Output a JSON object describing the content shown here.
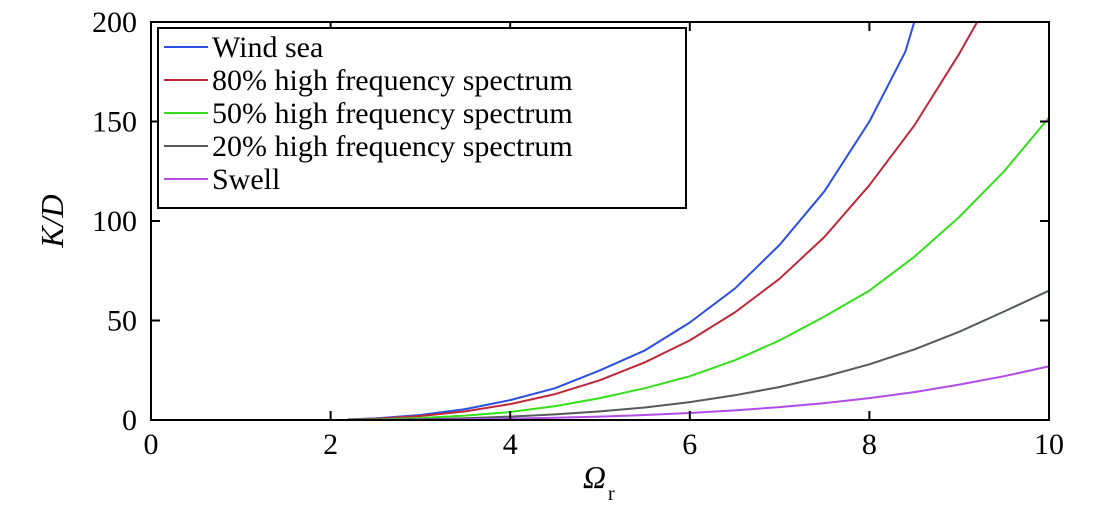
{
  "chart_data": {
    "type": "line",
    "title": "",
    "xlabel": "Ω",
    "xlabel_subscript": "r",
    "ylabel": "K/D",
    "xlim": [
      0,
      10
    ],
    "ylim": [
      0,
      200
    ],
    "xticks": [
      0,
      2,
      4,
      6,
      8,
      10
    ],
    "yticks": [
      0,
      50,
      100,
      150,
      200
    ],
    "grid": false,
    "legend_position": "top-left",
    "series": [
      {
        "name": "Wind sea",
        "color": "#2b4fe0",
        "x": [
          2.2,
          2.5,
          3.0,
          3.5,
          4.0,
          4.5,
          5.0,
          5.5,
          6.0,
          6.5,
          7.0,
          7.5,
          8.0,
          8.4,
          8.5
        ],
        "y": [
          0.3,
          0.8,
          2.5,
          5.5,
          10,
          16,
          25,
          35,
          49,
          66,
          88,
          115,
          150,
          185,
          200
        ]
      },
      {
        "name": "80% high frequency spectrum",
        "color": "#c0283a",
        "x": [
          2.2,
          2.5,
          3.0,
          3.5,
          4.0,
          4.5,
          5.0,
          5.5,
          6.0,
          6.5,
          7.0,
          7.5,
          8.0,
          8.5,
          9.0,
          9.2
        ],
        "y": [
          0.2,
          0.6,
          2,
          4.3,
          8,
          13,
          20,
          29,
          40,
          54,
          71,
          92,
          118,
          148,
          184,
          200
        ]
      },
      {
        "name": "50% high frequency spectrum",
        "color": "#33e01a",
        "x": [
          2.2,
          2.5,
          3.0,
          3.5,
          4.0,
          4.5,
          5.0,
          5.5,
          6.0,
          6.5,
          7.0,
          7.5,
          8.0,
          8.5,
          9.0,
          9.5,
          10.0
        ],
        "y": [
          0.1,
          0.3,
          1,
          2.2,
          4,
          7,
          11,
          16,
          22,
          30,
          40,
          52,
          65,
          82,
          102,
          125,
          152
        ]
      },
      {
        "name": "20% high frequency spectrum",
        "color": "#555a5a",
        "x": [
          2.2,
          2.5,
          3.0,
          3.5,
          4.0,
          4.5,
          5.0,
          5.5,
          6.0,
          6.5,
          7.0,
          7.5,
          8.0,
          8.5,
          9.0,
          9.5,
          10.0
        ],
        "y": [
          0.05,
          0.1,
          0.4,
          0.9,
          1.7,
          2.8,
          4.3,
          6.3,
          9,
          12.4,
          16.6,
          21.8,
          28,
          35.5,
          44.3,
          54.5,
          65
        ]
      },
      {
        "name": "Swell",
        "color": "#b24ce8",
        "x": [
          2.2,
          2.5,
          3.0,
          3.5,
          4.0,
          4.5,
          5.0,
          5.5,
          6.0,
          6.5,
          7.0,
          7.5,
          8.0,
          8.5,
          9.0,
          9.5,
          10.0
        ],
        "y": [
          0.0,
          0.05,
          0.15,
          0.35,
          0.7,
          1.1,
          1.7,
          2.5,
          3.5,
          4.8,
          6.5,
          8.5,
          11,
          14,
          17.8,
          22,
          27
        ]
      }
    ]
  }
}
